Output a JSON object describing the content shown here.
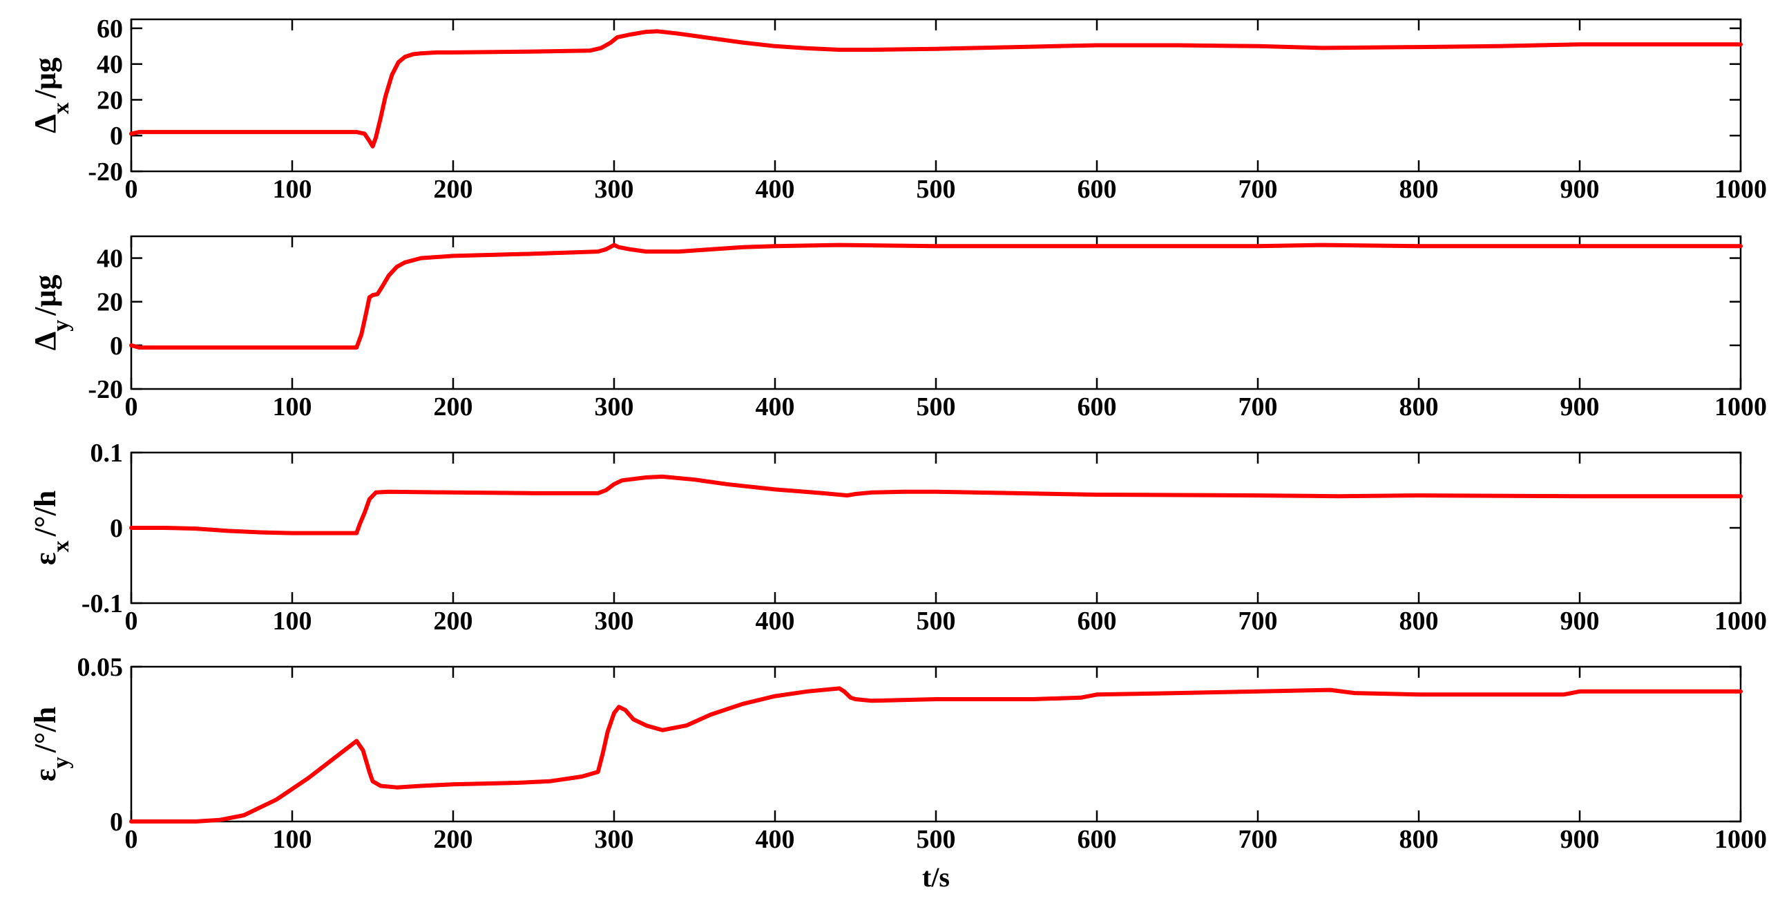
{
  "chart_data": [
    {
      "type": "line",
      "ylabel": "Δx /μg",
      "ylabel_main": "Δ",
      "ylabel_sub": "x",
      "ylabel_unit": "/μg",
      "xlim": [
        0,
        1000
      ],
      "ylim": [
        -20,
        65
      ],
      "xticks": [
        0,
        100,
        200,
        300,
        400,
        500,
        600,
        700,
        800,
        900,
        1000
      ],
      "yticks": [
        -20,
        0,
        20,
        40,
        60
      ],
      "grid": false,
      "series": [
        {
          "color": "#ff0000",
          "x": [
            0,
            5,
            20,
            50,
            100,
            140,
            145,
            148,
            150,
            152,
            155,
            158,
            162,
            166,
            170,
            175,
            180,
            190,
            200,
            250,
            285,
            292,
            298,
            302,
            310,
            320,
            327,
            340,
            360,
            380,
            400,
            420,
            440,
            460,
            500,
            550,
            600,
            650,
            700,
            740,
            800,
            850,
            900,
            950,
            1000
          ],
          "y": [
            1,
            2,
            2,
            2,
            2,
            2,
            1,
            -3,
            -6,
            -1,
            10,
            22,
            34,
            41,
            44,
            45.5,
            46,
            46.5,
            46.5,
            47,
            47.5,
            49,
            52,
            55,
            56.5,
            58,
            58.3,
            57,
            54.5,
            52,
            50,
            48.8,
            48,
            48,
            48.5,
            49.5,
            50.5,
            50.5,
            50,
            49,
            49.5,
            50,
            51,
            51,
            51
          ]
        }
      ]
    },
    {
      "type": "line",
      "ylabel": "Δy /μg",
      "ylabel_main": "Δ",
      "ylabel_sub": "y",
      "ylabel_unit": "/μg",
      "xlim": [
        0,
        1000
      ],
      "ylim": [
        -20,
        50
      ],
      "xticks": [
        0,
        100,
        200,
        300,
        400,
        500,
        600,
        700,
        800,
        900,
        1000
      ],
      "yticks": [
        -20,
        0,
        20,
        40
      ],
      "grid": false,
      "series": [
        {
          "color": "#ff0000",
          "x": [
            0,
            5,
            10,
            50,
            100,
            140,
            143,
            146,
            148,
            150,
            153,
            156,
            160,
            165,
            170,
            180,
            200,
            250,
            290,
            295,
            300,
            303,
            310,
            320,
            340,
            380,
            400,
            440,
            500,
            600,
            700,
            740,
            800,
            900,
            1000
          ],
          "y": [
            0,
            -1,
            -1,
            -1,
            -1,
            -1,
            5,
            15,
            22,
            23,
            23.5,
            27,
            32,
            36,
            38,
            40,
            41,
            42,
            43,
            44,
            46,
            45,
            44,
            43,
            43,
            45,
            45.5,
            46,
            45.5,
            45.5,
            45.5,
            46,
            45.5,
            45.5,
            45.5
          ]
        }
      ]
    },
    {
      "type": "line",
      "ylabel": "εx/°/h",
      "ylabel_main": "ε",
      "ylabel_sub": "x",
      "ylabel_unit": "/°/h",
      "xlim": [
        0,
        1000
      ],
      "ylim": [
        -0.1,
        0.1
      ],
      "xticks": [
        0,
        100,
        200,
        300,
        400,
        500,
        600,
        700,
        800,
        900,
        1000
      ],
      "yticks": [
        -0.1,
        0,
        0.1
      ],
      "ytick_labels": [
        "-0.1",
        "0",
        "0.1"
      ],
      "grid": false,
      "series": [
        {
          "color": "#ff0000",
          "x": [
            0,
            20,
            40,
            60,
            80,
            100,
            120,
            140,
            142,
            145,
            148,
            152,
            160,
            200,
            250,
            290,
            295,
            300,
            305,
            320,
            330,
            350,
            370,
            400,
            430,
            445,
            450,
            460,
            480,
            500,
            550,
            600,
            700,
            750,
            800,
            900,
            1000
          ],
          "y": [
            0,
            0,
            -0.001,
            -0.004,
            -0.006,
            -0.007,
            -0.007,
            -0.007,
            0.005,
            0.02,
            0.038,
            0.047,
            0.048,
            0.047,
            0.046,
            0.046,
            0.05,
            0.058,
            0.063,
            0.067,
            0.068,
            0.064,
            0.058,
            0.051,
            0.046,
            0.043,
            0.045,
            0.047,
            0.048,
            0.048,
            0.046,
            0.044,
            0.043,
            0.042,
            0.043,
            0.042,
            0.042
          ]
        }
      ]
    },
    {
      "type": "line",
      "ylabel": "εy/°/h",
      "ylabel_main": "ε",
      "ylabel_sub": "y",
      "ylabel_unit": "/°/h",
      "xlabel": "t/s",
      "xlim": [
        0,
        1000
      ],
      "ylim": [
        0,
        0.05
      ],
      "xticks": [
        0,
        100,
        200,
        300,
        400,
        500,
        600,
        700,
        800,
        900,
        1000
      ],
      "yticks": [
        0,
        0.05
      ],
      "ytick_labels": [
        "0",
        "0.05"
      ],
      "grid": false,
      "series": [
        {
          "color": "#ff0000",
          "x": [
            0,
            20,
            40,
            55,
            70,
            90,
            110,
            130,
            140,
            144,
            148,
            150,
            155,
            165,
            180,
            200,
            240,
            260,
            280,
            290,
            293,
            296,
            300,
            303,
            307,
            312,
            320,
            330,
            345,
            360,
            380,
            400,
            420,
            440,
            443,
            447,
            450,
            460,
            500,
            560,
            590,
            600,
            650,
            700,
            745,
            760,
            800,
            850,
            890,
            900,
            1000
          ],
          "y": [
            0,
            0,
            0,
            0.0005,
            0.002,
            0.007,
            0.014,
            0.022,
            0.026,
            0.023,
            0.016,
            0.013,
            0.0115,
            0.011,
            0.0115,
            0.012,
            0.0125,
            0.013,
            0.0145,
            0.016,
            0.022,
            0.029,
            0.035,
            0.037,
            0.036,
            0.033,
            0.031,
            0.0295,
            0.031,
            0.0345,
            0.038,
            0.0405,
            0.042,
            0.043,
            0.042,
            0.04,
            0.0395,
            0.039,
            0.0395,
            0.0395,
            0.04,
            0.041,
            0.0415,
            0.042,
            0.0425,
            0.0415,
            0.041,
            0.041,
            0.041,
            0.042,
            0.042
          ]
        }
      ]
    }
  ]
}
